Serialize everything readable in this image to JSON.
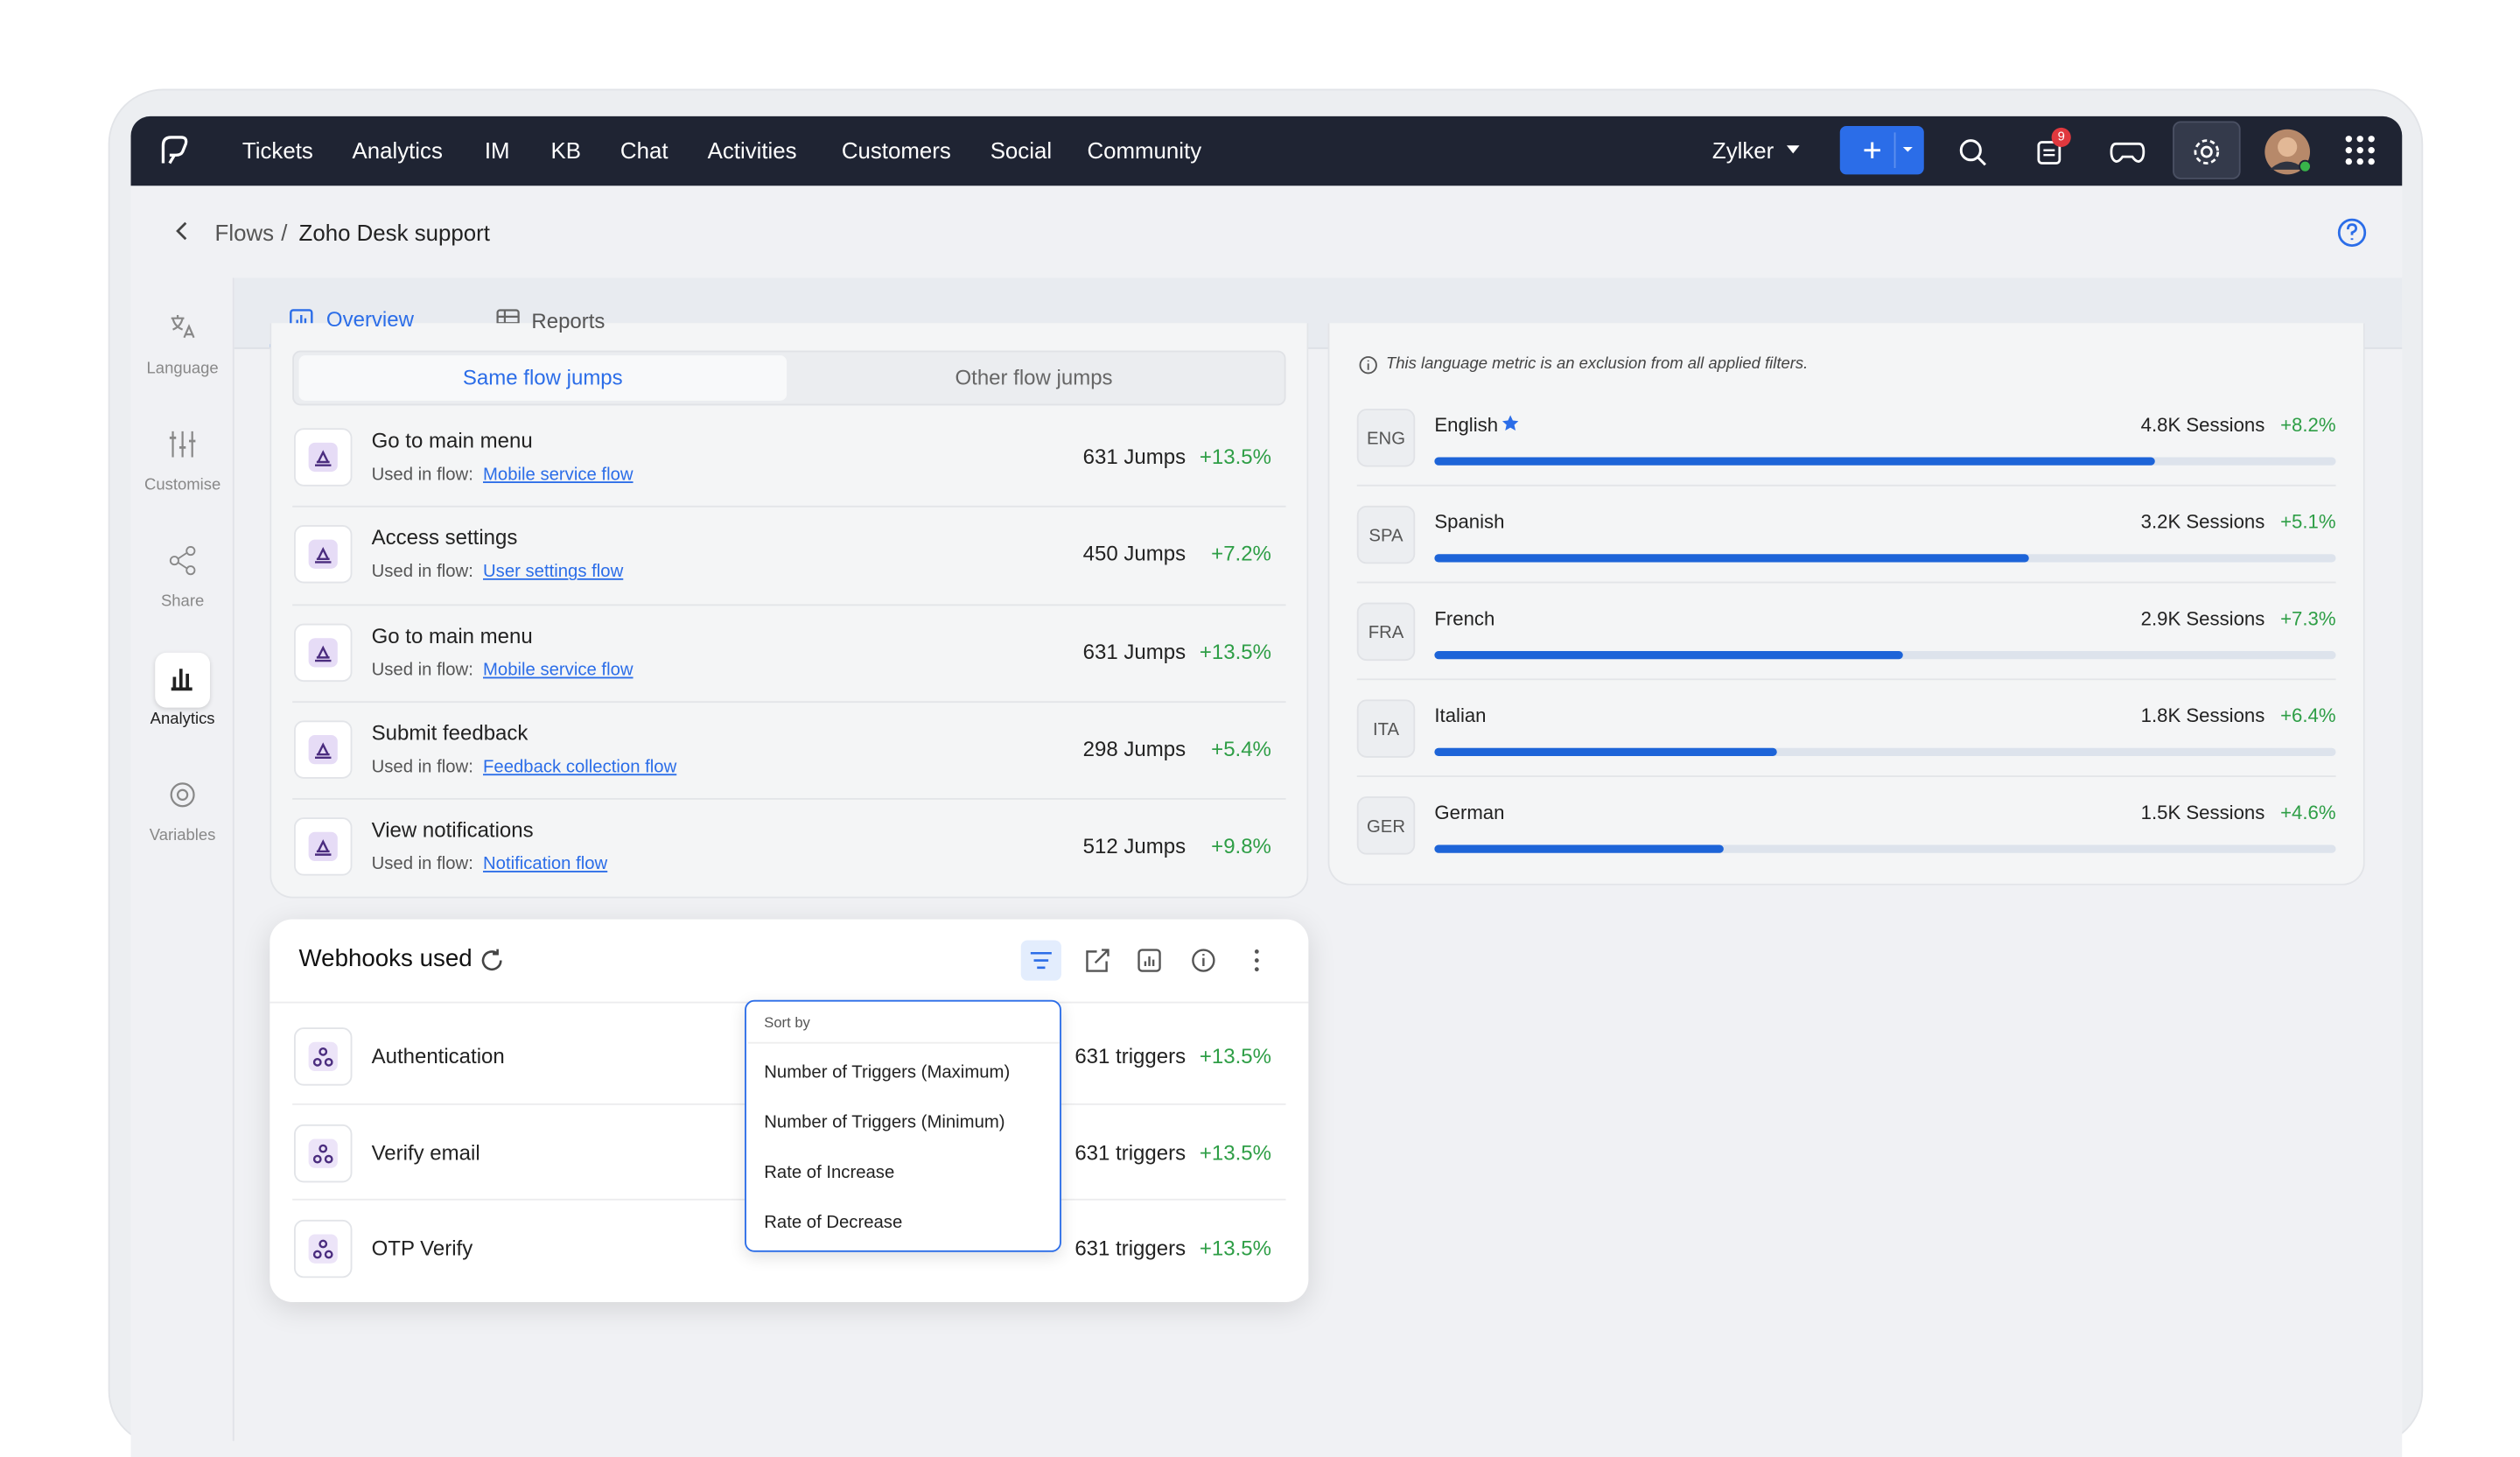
{
  "nav": {
    "items": [
      "Tickets",
      "Analytics",
      "IM",
      "KB",
      "Chat",
      "Activities",
      "Customers",
      "Social",
      "Community"
    ],
    "org": "Zylker",
    "notification_count": "9"
  },
  "breadcrumb": {
    "parent": "Flows",
    "separator": "/",
    "current": "Zoho Desk support"
  },
  "sidebar": [
    "Language",
    "Customise",
    "Share",
    "Analytics",
    "Variables"
  ],
  "tabs": [
    "Overview",
    "Reports"
  ],
  "flow_jumps": {
    "tabs": [
      "Same flow jumps",
      "Other flow jumps"
    ],
    "used_in_label": "Used in flow:",
    "rows": [
      {
        "title": "Go to main menu",
        "flow": "Mobile service flow",
        "jumps": "631 Jumps",
        "change": "+13.5%"
      },
      {
        "title": "Access settings",
        "flow": "User settings flow",
        "jumps": "450 Jumps",
        "change": "+7.2%"
      },
      {
        "title": "Go to main menu",
        "flow": "Mobile service flow",
        "jumps": "631 Jumps",
        "change": "+13.5%"
      },
      {
        "title": "Submit feedback",
        "flow": "Feedback collection flow",
        "jumps": "298 Jumps",
        "change": "+5.4%"
      },
      {
        "title": "View notifications",
        "flow": "Notification flow",
        "jumps": "512 Jumps",
        "change": "+9.8%"
      }
    ]
  },
  "languages": {
    "note": "This language metric is an exclusion from all applied filters.",
    "rows": [
      {
        "code": "ENG",
        "name": "English",
        "sessions": "4.8K Sessions",
        "change": "+8.2%",
        "share": 80
      },
      {
        "code": "SPA",
        "name": "Spanish",
        "sessions": "3.2K Sessions",
        "change": "+5.1%",
        "share": 66
      },
      {
        "code": "FRA",
        "name": "French",
        "sessions": "2.9K Sessions",
        "change": "+7.3%",
        "share": 52
      },
      {
        "code": "ITA",
        "name": "Italian",
        "sessions": "1.8K Sessions",
        "change": "+6.4%",
        "share": 38
      },
      {
        "code": "GER",
        "name": "German",
        "sessions": "1.5K Sessions",
        "change": "+4.6%",
        "share": 32
      }
    ]
  },
  "webhooks": {
    "title": "Webhooks used",
    "rows": [
      {
        "name": "Authentication",
        "triggers": "631 triggers",
        "change": "+13.5%"
      },
      {
        "name": "Verify email",
        "triggers": "631 triggers",
        "change": "+13.5%"
      },
      {
        "name": "OTP Verify",
        "triggers": "631 triggers",
        "change": "+13.5%"
      }
    ],
    "sort_menu": {
      "title": "Sort by",
      "options": [
        "Number of Triggers (Maximum)",
        "Number of Triggers (Minimum)",
        "Rate of Increase",
        "Rate of Decrease"
      ]
    }
  }
}
